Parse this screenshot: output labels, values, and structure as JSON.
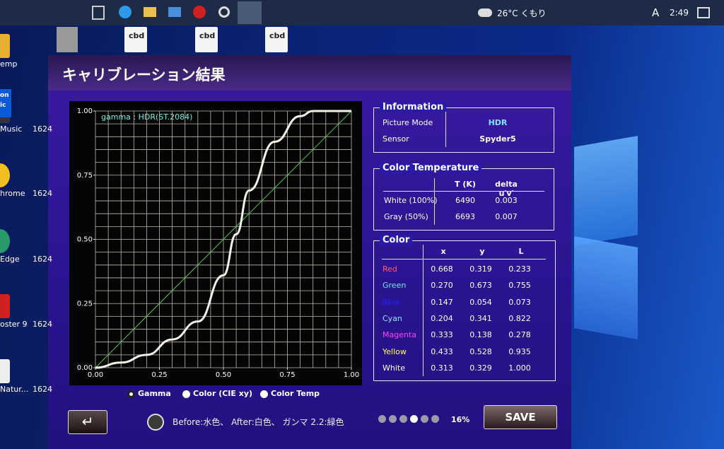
{
  "taskbar": {
    "weather": "26°C くもり",
    "ime": "A",
    "time": "2:49"
  },
  "desktop": {
    "left_icons": [
      "emp",
      "Music",
      "hrome",
      "Edge",
      "oster 9",
      "Natur..."
    ],
    "side_labels": [
      "1624",
      "1624",
      "1624",
      "1624",
      "1624"
    ],
    "tile": [
      "on",
      "ic"
    ],
    "top_icons": [
      "cbd",
      "cbd",
      "cbd"
    ]
  },
  "window": {
    "title": "キャリブレーション結果"
  },
  "chart_data": {
    "type": "line",
    "title": "gamma : HDR(ST.2084)",
    "x": [
      0,
      0.1,
      0.2,
      0.3,
      0.4,
      0.5,
      0.55,
      0.6,
      0.7,
      0.8,
      0.85,
      0.9,
      1
    ],
    "series": [
      {
        "color": "#f4f1e6",
        "values": [
          0,
          0.02,
          0.05,
          0.11,
          0.18,
          0.36,
          0.52,
          0.69,
          0.88,
          0.98,
          1,
          1,
          1
        ]
      },
      {
        "color": "#4ccc4c",
        "values": [
          0,
          0.1,
          0.2,
          0.3,
          0.4,
          0.5,
          0.55,
          0.6,
          0.7,
          0.8,
          0.85,
          0.9,
          1
        ]
      }
    ],
    "xlim": [
      0,
      1
    ],
    "ylim": [
      0,
      1
    ],
    "xticks": [
      {
        "value": 0,
        "label": "0.00"
      },
      {
        "value": 0.25,
        "label": "0.25"
      },
      {
        "value": 0.5,
        "label": "0.50"
      },
      {
        "value": 0.75,
        "label": "0.75"
      },
      {
        "value": 1,
        "label": "1.00"
      }
    ],
    "yticks": [
      {
        "value": 0,
        "label": "0.00"
      },
      {
        "value": 0.25,
        "label": "0.25"
      },
      {
        "value": 0.5,
        "label": "0.50"
      },
      {
        "value": 0.75,
        "label": "0.75"
      },
      {
        "value": 1,
        "label": "1.00"
      }
    ],
    "grid": true,
    "grid_divisions": 20
  },
  "information": {
    "title": "Information",
    "rows": [
      [
        "Picture Mode",
        "HDR"
      ],
      [
        "Sensor",
        "Spyder5"
      ]
    ]
  },
  "color_temperature": {
    "title": "Color Temperature",
    "header": [
      "T (K)",
      "delta u′v′"
    ],
    "rows": [
      [
        "White (100%)",
        "6490",
        "0.003"
      ],
      [
        "Gray (50%)",
        "6693",
        "0.007"
      ]
    ]
  },
  "color": {
    "title": "Color",
    "header": [
      "x",
      "y",
      "L"
    ],
    "rows": [
      {
        "name": "Red",
        "color": "#ff5a78",
        "values": [
          "0.668",
          "0.319",
          "0.233"
        ]
      },
      {
        "name": "Green",
        "color": "#6fe6d6",
        "values": [
          "0.270",
          "0.673",
          "0.755"
        ]
      },
      {
        "name": "Blue",
        "color": "#2020ff",
        "values": [
          "0.147",
          "0.054",
          "0.073"
        ]
      },
      {
        "name": "Cyan",
        "color": "#8fe8ff",
        "values": [
          "0.204",
          "0.341",
          "0.822"
        ]
      },
      {
        "name": "Magenta",
        "color": "#ff40f0",
        "values": [
          "0.333",
          "0.138",
          "0.278"
        ]
      },
      {
        "name": "Yellow",
        "color": "#ffff50",
        "values": [
          "0.433",
          "0.528",
          "0.935"
        ]
      },
      {
        "name": "White",
        "color": "#ffffff",
        "values": [
          "0.313",
          "0.329",
          "1.000"
        ]
      }
    ]
  },
  "view_options": {
    "options": [
      "Gamma",
      "Color (CIE xy)",
      "Color Temp"
    ],
    "selected": 0
  },
  "footer": {
    "note": "Before:水色、 After:白色、 ガンマ 2.2:緑色",
    "progress": "16%",
    "progress_steps": 6,
    "progress_current": 4,
    "save": "SAVE"
  }
}
